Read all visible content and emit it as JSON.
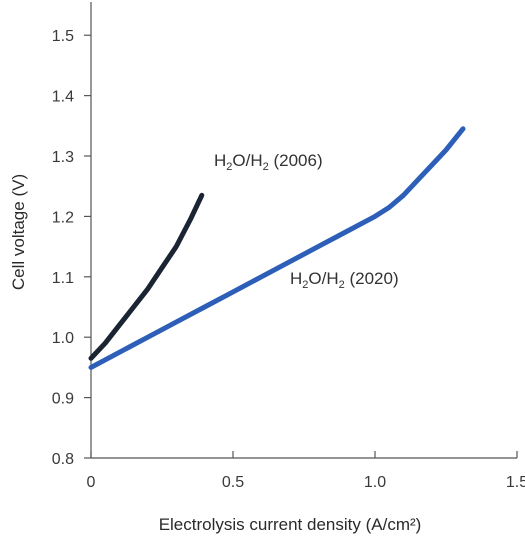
{
  "chart_data": {
    "type": "line",
    "xlabel": "Electrolysis current density (A/cm²)",
    "ylabel": "Cell voltage (V)",
    "xlim": [
      0,
      1.5
    ],
    "ylim": [
      0.8,
      1.55
    ],
    "x_ticks": [
      "0",
      "0.5",
      "1.0",
      "1.5"
    ],
    "y_ticks": [
      "0.8",
      "0.9",
      "1.0",
      "1.1",
      "1.2",
      "1.3",
      "1.4",
      "1.5"
    ],
    "grid": false,
    "legend": "none",
    "series": [
      {
        "name": "H2O/H2 (2006)",
        "label_main": "H",
        "label_sub1": "2",
        "label_mid": "O/H",
        "label_sub2": "2",
        "label_tail": " (2006)",
        "color": "#1a2433",
        "x": [
          0.0,
          0.05,
          0.1,
          0.15,
          0.2,
          0.25,
          0.3,
          0.35,
          0.39
        ],
        "y": [
          0.965,
          0.99,
          1.02,
          1.05,
          1.08,
          1.115,
          1.15,
          1.195,
          1.235
        ]
      },
      {
        "name": "H2O/H2 (2020)",
        "label_main": "H",
        "label_sub1": "2",
        "label_mid": "O/H",
        "label_sub2": "2",
        "label_tail": " (2020)",
        "color": "#2d5fb8",
        "x": [
          0.0,
          0.1,
          0.2,
          0.3,
          0.4,
          0.5,
          0.6,
          0.7,
          0.8,
          0.9,
          1.0,
          1.05,
          1.1,
          1.15,
          1.2,
          1.25,
          1.31
        ],
        "y": [
          0.95,
          0.975,
          1.0,
          1.025,
          1.05,
          1.075,
          1.1,
          1.125,
          1.15,
          1.175,
          1.2,
          1.215,
          1.235,
          1.26,
          1.285,
          1.31,
          1.345
        ]
      }
    ]
  }
}
